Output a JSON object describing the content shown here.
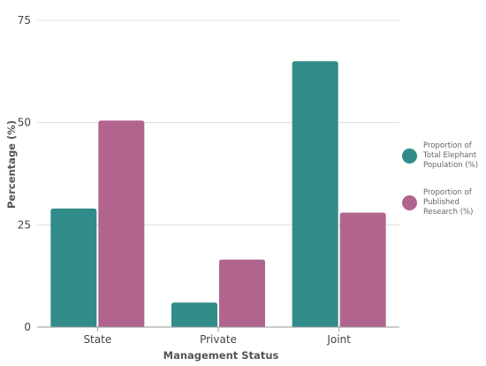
{
  "chart_data": {
    "type": "bar",
    "xlabel": "Management Status",
    "ylabel": "Percentage (%)",
    "ylim": [
      0,
      75
    ],
    "yticks": [
      "0",
      "25",
      "50",
      "75"
    ],
    "grid": true,
    "legend_position": "right",
    "categories": [
      "State",
      "Private",
      "Joint"
    ],
    "series": [
      {
        "name": "Proportion of Total Elephant Population (%)",
        "color": "#318c89",
        "values": [
          29,
          6,
          65
        ]
      },
      {
        "name": "Proportion of Published Research (%)",
        "color": "#b0648e",
        "values": [
          50.5,
          16.5,
          28
        ]
      }
    ]
  }
}
